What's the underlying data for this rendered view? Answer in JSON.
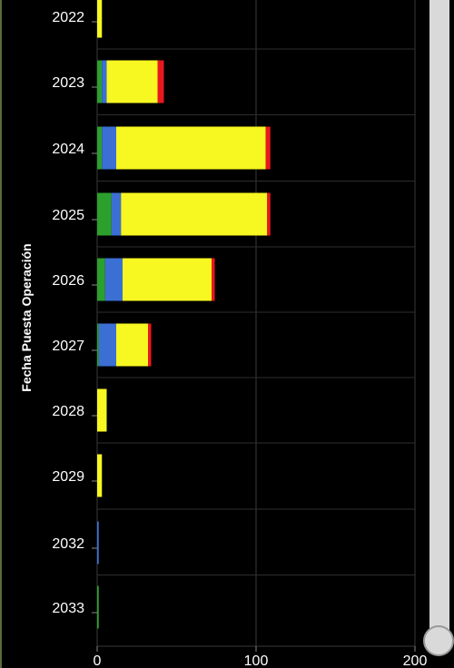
{
  "chart_data": {
    "type": "bar",
    "orientation": "horizontal",
    "stacked": true,
    "ylabel": "Fecha Puesta Operación",
    "xlabel": "",
    "xlim": [
      0,
      200
    ],
    "xticks": [
      0,
      100,
      200
    ],
    "grid": true,
    "categories": [
      "2022",
      "2023",
      "2024",
      "2025",
      "2026",
      "2027",
      "2028",
      "2029",
      "2032",
      "2033"
    ],
    "series": [
      {
        "color": "#2ca02c",
        "values": [
          0,
          3,
          3,
          9,
          5,
          1,
          0,
          0,
          0,
          1
        ]
      },
      {
        "color": "#3b6fd4",
        "values": [
          0,
          3,
          9,
          6,
          11,
          11,
          0,
          0,
          1,
          0
        ]
      },
      {
        "color": "#f7f721",
        "values": [
          3,
          32,
          94,
          92,
          56,
          20,
          6,
          3,
          0,
          0
        ]
      },
      {
        "color": "#e8181c",
        "values": [
          0,
          4,
          3,
          2,
          2,
          2,
          0,
          0,
          0,
          0
        ]
      }
    ]
  }
}
